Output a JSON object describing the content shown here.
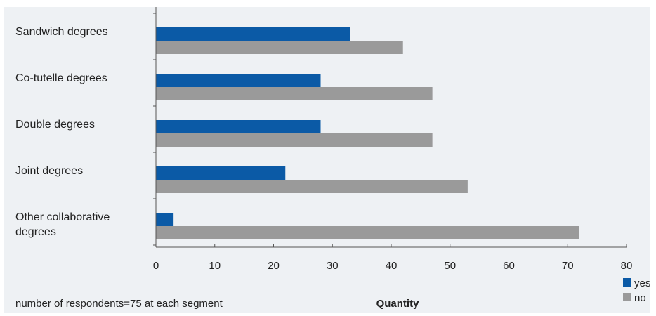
{
  "chart_data": {
    "type": "bar",
    "orientation": "horizontal",
    "categories": [
      "Sandwich degrees",
      "Co-tutelle degrees",
      "Double degrees",
      "Joint degrees",
      "Other collaborative degrees"
    ],
    "category_lines": [
      [
        "Sandwich degrees"
      ],
      [
        "Co-tutelle degrees"
      ],
      [
        "Double degrees"
      ],
      [
        "Joint degrees"
      ],
      [
        "Other collaborative",
        "degrees"
      ]
    ],
    "series": [
      {
        "name": "yes",
        "color": "#0b5aa6",
        "values": [
          33,
          28,
          28,
          22,
          3
        ]
      },
      {
        "name": "no",
        "color": "#9a9a9a",
        "values": [
          42,
          47,
          47,
          53,
          72
        ]
      }
    ],
    "xlabel": "Quantity",
    "xlim": [
      0,
      80
    ],
    "xticks": [
      0,
      10,
      20,
      30,
      40,
      50,
      60,
      70,
      80
    ],
    "grid": false,
    "legend_position": "bottom-right",
    "note": "number of respondents=75 at each segment"
  }
}
